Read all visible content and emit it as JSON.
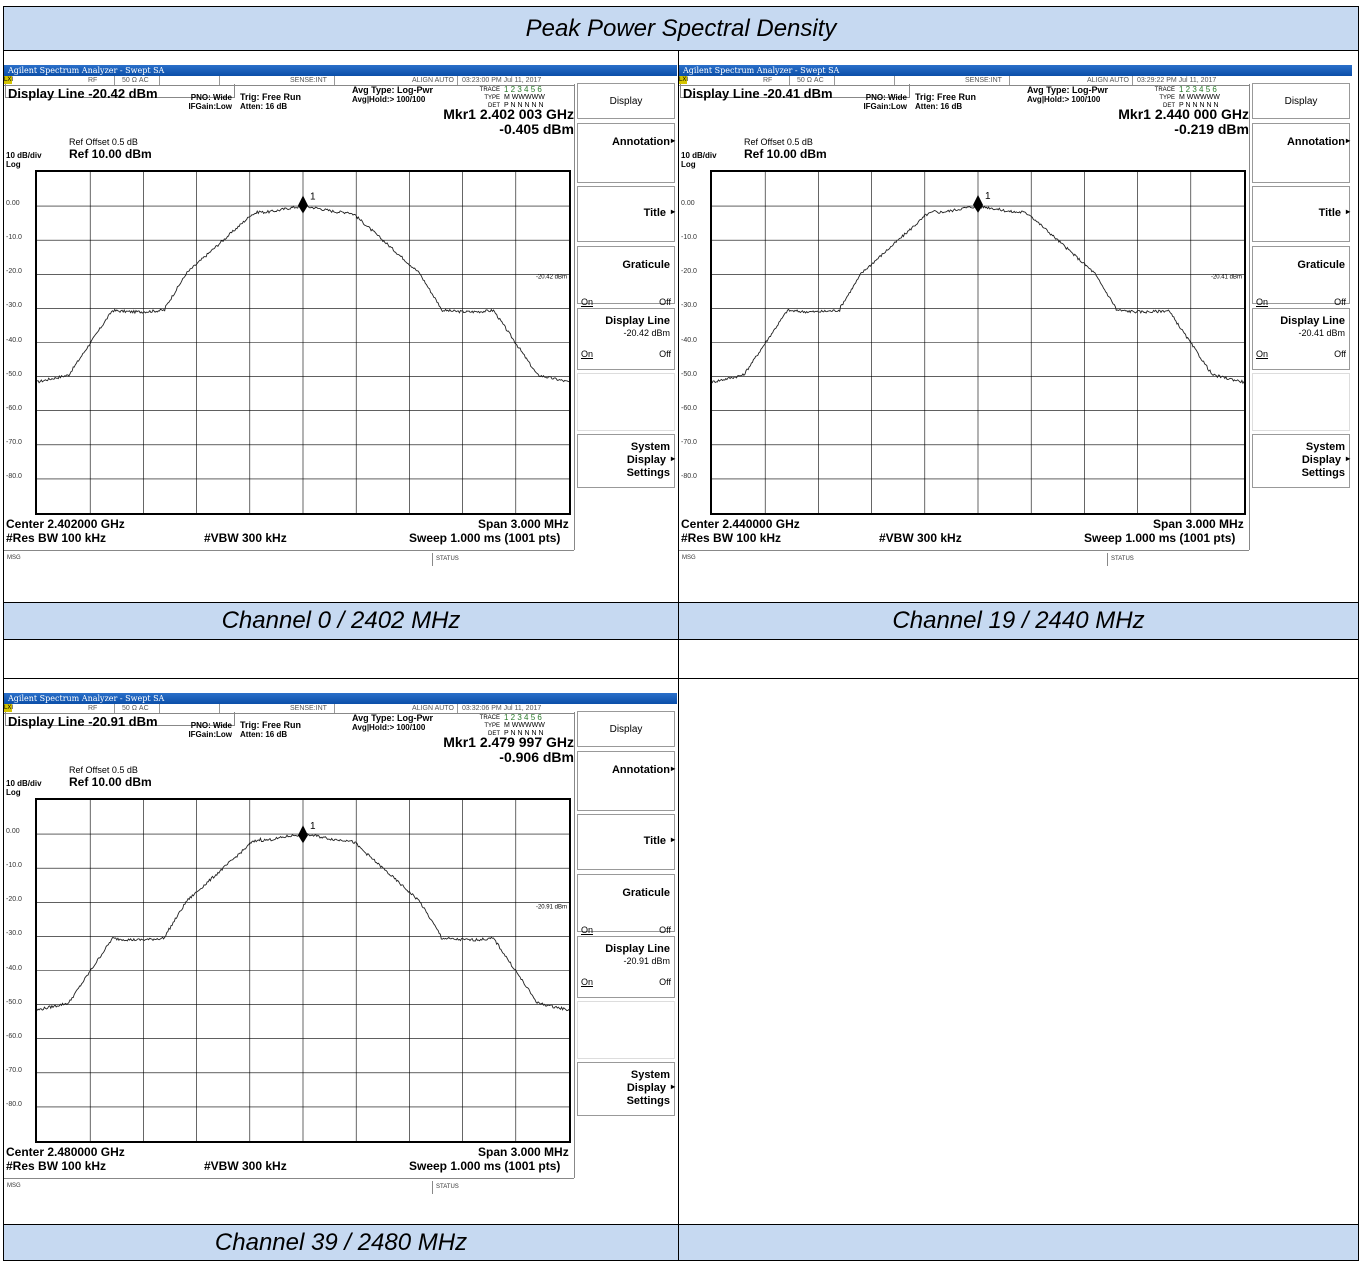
{
  "header": {
    "title": "Peak Power Spectral Density"
  },
  "captions": [
    "Channel 0 / 2402 MHz",
    "Channel 19 / 2440 MHz",
    "Channel 39 / 2480 MHz"
  ],
  "analyzer_common": {
    "window_title": "Agilent Spectrum Analyzer - Swept SA",
    "lxi": "LXI",
    "rf": "RF",
    "impedance": "50 Ω  AC",
    "sense": "SENSE:INT",
    "align": "ALIGN AUTO",
    "pno": "PNO: Wide",
    "ifgain": "IFGain:Low",
    "trig": "Trig: Free Run",
    "atten": "Atten: 16 dB",
    "avg_type": "Avg Type: Log-Pwr",
    "avg_hold": "Avg|Hold:> 100/100",
    "trace_label": "TRACE",
    "trace_digits": "1 2 3 4 5 6",
    "type_label": "TYPE",
    "type_value": "M WWWWW",
    "det_label": "DET",
    "det_value": "P N N N N N",
    "ref_offset": "Ref Offset 0.5 dB",
    "scale": "10 dB/div",
    "log": "Log",
    "ref_level": "Ref 10.00 dBm",
    "span": "Span 3.000 MHz",
    "rbw": "#Res BW 100 kHz",
    "vbw": "#VBW 300 kHz",
    "sweep": "Sweep  1.000 ms (1001 pts)",
    "msg": "MSG",
    "status": "STATUS",
    "marker_label": "1",
    "y_ticks": [
      "0.00",
      "-10.0",
      "-20.0",
      "-30.0",
      "-40.0",
      "-50.0",
      "-60.0",
      "-70.0",
      "-80.0"
    ],
    "softkeys": {
      "display": "Display",
      "annotation": "Annotation",
      "title": "Title",
      "graticule": "Graticule",
      "on": "On",
      "off": "Off",
      "display_line": "Display Line",
      "system_display_settings_1": "System",
      "system_display_settings_2": "Display",
      "system_display_settings_3": "Settings"
    }
  },
  "analyzers": [
    {
      "timestamp": "03:23:00 PM Jul 11, 2017",
      "display_line": "Display Line -20.42 dBm",
      "display_line_value": "-20.42 dBm",
      "display_line_tag": "-20.42 dBm",
      "marker_freq": "Mkr1 2.402 003 GHz",
      "marker_amp": "-0.405 dBm",
      "center": "Center 2.402000 GHz"
    },
    {
      "timestamp": "03:29:22 PM Jul 11, 2017",
      "display_line": "Display Line -20.41 dBm",
      "display_line_value": "-20.41 dBm",
      "display_line_tag": "-20.41 dBm",
      "marker_freq": "Mkr1 2.440 000 GHz",
      "marker_amp": "-0.219 dBm",
      "center": "Center 2.440000 GHz"
    },
    {
      "timestamp": "03:32:06 PM Jul 11, 2017",
      "display_line": "Display Line -20.91 dBm",
      "display_line_value": "-20.91 dBm",
      "display_line_tag": "-20.91 dBm",
      "marker_freq": "Mkr1 2.479 997 GHz",
      "marker_amp": "-0.906 dBm",
      "center": "Center 2.480000 GHz"
    }
  ]
}
